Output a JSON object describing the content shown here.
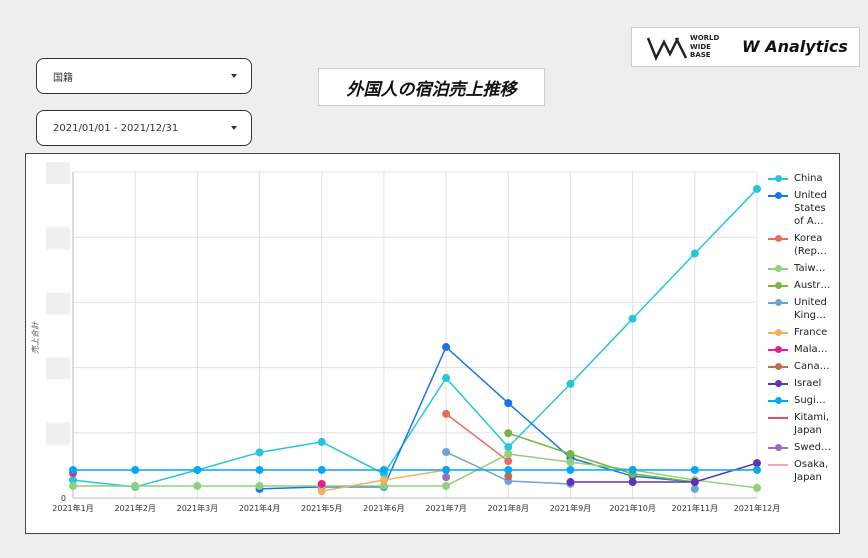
{
  "controls": {
    "country_filter": "国籍",
    "date_range": "2021/01/01 - 2021/12/31"
  },
  "logo": {
    "brand_lines": [
      "WORLD",
      "WIDE",
      "BASE"
    ],
    "product": "W Analytics"
  },
  "chart_data": {
    "type": "line",
    "title": "外国人の宿泊売上推移",
    "y_label": "売上合計",
    "categories": [
      "2021年1月",
      "2021年2月",
      "2021年3月",
      "2021年4月",
      "2021年5月",
      "2021年6月",
      "2021年7月",
      "2021年8月",
      "2021年9月",
      "2021年10月",
      "2021年11月",
      "2021年12月"
    ],
    "ylim": [
      0,
      100
    ],
    "yticks": [
      0
    ],
    "ygrid": [
      20,
      40,
      60,
      80,
      100
    ],
    "grid": true,
    "legend": "right",
    "series": [
      {
        "name": "China",
        "color": "#26c6da",
        "values": [
          5.5,
          3.4,
          8.6,
          14,
          17.2,
          7.4,
          36.8,
          15.6,
          35,
          55,
          75,
          94.8
        ]
      },
      {
        "name": "United States of A…",
        "color": "#1a73e8",
        "values": [
          null,
          null,
          null,
          2.8,
          3.4,
          3.4,
          46.3,
          29.1,
          12.3,
          6.7,
          4.9,
          null
        ]
      },
      {
        "name": "Korea (Rep…",
        "color": "#ea6b5e",
        "values": [
          null,
          null,
          null,
          null,
          null,
          null,
          25.8,
          11.3,
          null,
          null,
          null,
          null
        ]
      },
      {
        "name": "Taiw…",
        "color": "#8fd07a",
        "values": [
          3.7,
          3.7,
          3.7,
          3.7,
          3.7,
          3.7,
          3.7,
          13.5,
          11,
          8.6,
          5.5,
          3.1
        ]
      },
      {
        "name": "Austr…",
        "color": "#7cb342",
        "values": [
          null,
          null,
          null,
          null,
          null,
          null,
          null,
          19.9,
          13.5,
          7.4,
          4.9,
          null
        ]
      },
      {
        "name": "United King…",
        "color": "#6fa3d8",
        "values": [
          null,
          null,
          null,
          null,
          null,
          null,
          14.1,
          5.2,
          4.3,
          null,
          2.8,
          null
        ]
      },
      {
        "name": "France",
        "color": "#f6ae5f",
        "values": [
          null,
          null,
          null,
          null,
          2.1,
          5.5,
          8.6,
          null,
          null,
          null,
          null,
          null
        ]
      },
      {
        "name": "Mala…",
        "color": "#e91e8c",
        "values": [
          7.7,
          null,
          null,
          null,
          4.3,
          null,
          null,
          null,
          null,
          null,
          null,
          null
        ]
      },
      {
        "name": "Cana…",
        "color": "#c8684c",
        "values": [
          null,
          null,
          null,
          null,
          null,
          null,
          null,
          6.7,
          null,
          null,
          null,
          null
        ]
      },
      {
        "name": "Israel",
        "color": "#5e35b1",
        "values": [
          null,
          null,
          null,
          null,
          null,
          null,
          null,
          null,
          4.9,
          4.9,
          4.9,
          10.7
        ]
      },
      {
        "name": "Sugi…",
        "color": "#03a9f4",
        "values": [
          8.6,
          8.6,
          8.6,
          8.6,
          8.6,
          8.6,
          8.6,
          8.6,
          8.6,
          8.6,
          8.6,
          8.6
        ]
      },
      {
        "name": "Kitami, Japan",
        "color": "#e0487a",
        "values": [
          null,
          null,
          null,
          null,
          null,
          null,
          null,
          null,
          null,
          null,
          null,
          null
        ]
      },
      {
        "name": "Swed…",
        "color": "#9c6bc2",
        "values": [
          null,
          null,
          null,
          null,
          null,
          null,
          6.4,
          null,
          null,
          null,
          null,
          null
        ]
      },
      {
        "name": "Osaka, Japan",
        "color": "#f4a6c0",
        "values": [
          null,
          null,
          null,
          null,
          null,
          null,
          null,
          null,
          null,
          null,
          null,
          null
        ]
      }
    ]
  }
}
